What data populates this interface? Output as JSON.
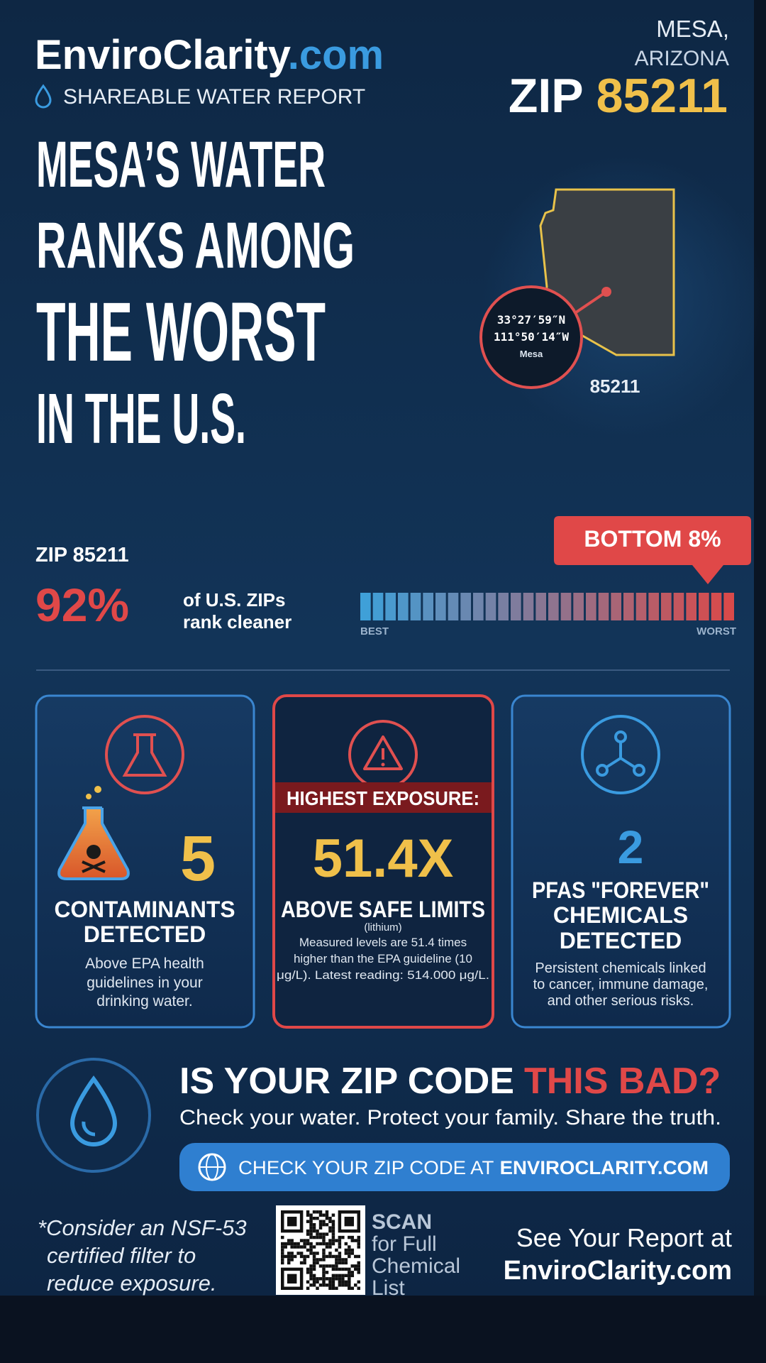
{
  "header": {
    "brand_name": "EnviroClarity",
    "brand_domain": ".com",
    "subtitle": "SHAREABLE WATER REPORT",
    "city": "MESA,",
    "state": "ARIZONA",
    "zip_label": "ZIP",
    "zip": "85211"
  },
  "headline": {
    "lines": [
      "MESA’S WATER",
      "RANKS AMONG",
      "THE WORST",
      "IN THE U.S."
    ]
  },
  "map": {
    "latitude": "33°27′59″N",
    "longitude": "111°50′14″W",
    "place": "Mesa",
    "zip": "85211"
  },
  "ranking": {
    "zip_label": "ZIP 85211",
    "percent": "92%",
    "description": [
      "of U.S. ZIPs",
      "rank cleaner"
    ],
    "callout": "BOTTOM 8%",
    "scale_low": "BEST",
    "scale_high": "WORST"
  },
  "cards": [
    {
      "value": "5",
      "title": [
        "CONTAMINANTS",
        "DETECTED"
      ],
      "description": [
        "Above EPA health",
        "guidelines in your",
        "drinking water."
      ]
    },
    {
      "banner": "HIGHEST EXPOSURE:",
      "value": "51.4X",
      "title": [
        "ABOVE SAFE LIMITS"
      ],
      "note": "(lithium)",
      "description": [
        "Measured levels are 51.4 times",
        "higher than the EPA guideline (10",
        "μg/L). Latest reading: 514.000 μg/L."
      ]
    },
    {
      "value": "2",
      "title": [
        "PFAS \"FOREVER\"",
        "CHEMICALS",
        "DETECTED"
      ],
      "description": [
        "Persistent chemicals linked",
        "to cancer, immune damage,",
        "and other serious risks."
      ]
    }
  ],
  "cta": {
    "headline": "IS YOUR ZIP CODE",
    "headline_highlight": "THIS BAD?",
    "subtitle": "Check your water. Protect your family. Share the truth.",
    "button_text": "CHECK YOUR ZIP CODE AT",
    "button_link": "ENVIROCLARITY.COM"
  },
  "footer": {
    "disclaimer": [
      "*Consider an NSF-53",
      "certified filter to",
      "reduce exposure."
    ],
    "scan": [
      "SCAN",
      "for Full",
      "Chemical",
      "List"
    ],
    "report_label": "See Your Report at",
    "report_link": "EnviroClarity.com"
  }
}
